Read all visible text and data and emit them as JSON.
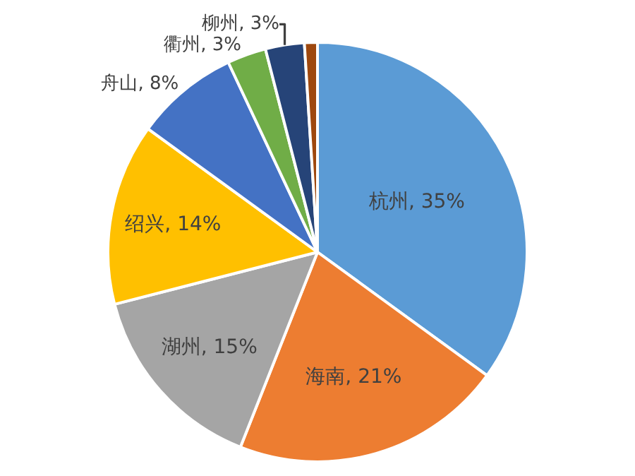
{
  "chart_data": {
    "type": "pie",
    "categories": [
      "杭州",
      "海南",
      "湖州",
      "绍兴",
      "舟山",
      "衢州",
      "柳州",
      null
    ],
    "values": [
      35,
      21,
      15,
      14,
      8,
      3,
      3,
      1
    ],
    "value_labels": [
      "35%",
      "21%",
      "15%",
      "14%",
      "8%",
      "3%",
      "3%",
      null
    ],
    "colors": [
      "#5b9bd5",
      "#ed7d31",
      "#a5a5a5",
      "#ffc000",
      "#4472c4",
      "#70ad47",
      "#264478",
      "#9e480e"
    ],
    "legend": false
  }
}
